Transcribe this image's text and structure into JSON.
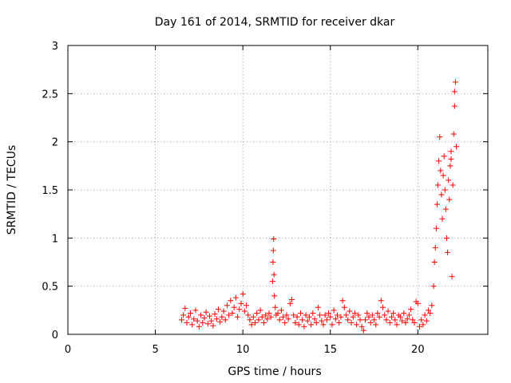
{
  "chart_data": {
    "type": "scatter",
    "title": "Day 161 of 2014, SRMTID for receiver dkar",
    "xlabel": "GPS time / hours",
    "ylabel": "SRMTID / TECUs",
    "xlim": [
      0,
      24
    ],
    "ylim": [
      0,
      3
    ],
    "x_ticks": [
      "0",
      "5",
      "10",
      "15",
      "20"
    ],
    "y_ticks": [
      "0",
      "0.5",
      "1",
      "1.5",
      "2",
      "2.5",
      "3"
    ],
    "grid": true,
    "marker": "+",
    "series_color": "#ff0000",
    "series": [
      {
        "points": [
          [
            6.5,
            0.15
          ],
          [
            6.6,
            0.2
          ],
          [
            6.7,
            0.27
          ],
          [
            6.8,
            0.12
          ],
          [
            6.9,
            0.18
          ],
          [
            7.0,
            0.22
          ],
          [
            7.1,
            0.1
          ],
          [
            7.2,
            0.16
          ],
          [
            7.3,
            0.25
          ],
          [
            7.4,
            0.14
          ],
          [
            7.5,
            0.08
          ],
          [
            7.6,
            0.2
          ],
          [
            7.7,
            0.12
          ],
          [
            7.8,
            0.17
          ],
          [
            7.9,
            0.23
          ],
          [
            8.0,
            0.11
          ],
          [
            8.1,
            0.19
          ],
          [
            8.2,
            0.14
          ],
          [
            8.3,
            0.09
          ],
          [
            8.4,
            0.21
          ],
          [
            8.5,
            0.16
          ],
          [
            8.6,
            0.26
          ],
          [
            8.7,
            0.13
          ],
          [
            8.8,
            0.18
          ],
          [
            8.9,
            0.24
          ],
          [
            9.0,
            0.15
          ],
          [
            9.1,
            0.3
          ],
          [
            9.2,
            0.2
          ],
          [
            9.3,
            0.35
          ],
          [
            9.4,
            0.22
          ],
          [
            9.5,
            0.28
          ],
          [
            9.6,
            0.38
          ],
          [
            9.7,
            0.18
          ],
          [
            9.8,
            0.26
          ],
          [
            9.9,
            0.32
          ],
          [
            10.0,
            0.42
          ],
          [
            10.1,
            0.24
          ],
          [
            10.2,
            0.3
          ],
          [
            10.3,
            0.2
          ],
          [
            10.4,
            0.15
          ],
          [
            10.5,
            0.1
          ],
          [
            10.6,
            0.18
          ],
          [
            10.7,
            0.12
          ],
          [
            10.8,
            0.22
          ],
          [
            10.9,
            0.15
          ],
          [
            11.0,
            0.25
          ],
          [
            11.1,
            0.18
          ],
          [
            11.2,
            0.12
          ],
          [
            11.3,
            0.2
          ],
          [
            11.4,
            0.16
          ],
          [
            11.5,
            0.22
          ],
          [
            11.6,
            0.18
          ],
          [
            11.7,
            0.55
          ],
          [
            11.72,
            0.75
          ],
          [
            11.74,
            0.87
          ],
          [
            11.76,
            0.99
          ],
          [
            11.78,
            0.62
          ],
          [
            11.8,
            0.4
          ],
          [
            11.85,
            0.28
          ],
          [
            11.9,
            0.2
          ],
          [
            12.0,
            0.22
          ],
          [
            12.1,
            0.15
          ],
          [
            12.2,
            0.25
          ],
          [
            12.3,
            0.18
          ],
          [
            12.4,
            0.12
          ],
          [
            12.5,
            0.2
          ],
          [
            12.6,
            0.16
          ],
          [
            12.7,
            0.32
          ],
          [
            12.8,
            0.36
          ],
          [
            12.9,
            0.2
          ],
          [
            13.0,
            0.12
          ],
          [
            13.1,
            0.18
          ],
          [
            13.2,
            0.1
          ],
          [
            13.3,
            0.22
          ],
          [
            13.4,
            0.15
          ],
          [
            13.5,
            0.08
          ],
          [
            13.6,
            0.2
          ],
          [
            13.7,
            0.14
          ],
          [
            13.8,
            0.18
          ],
          [
            13.9,
            0.1
          ],
          [
            14.0,
            0.22
          ],
          [
            14.1,
            0.16
          ],
          [
            14.2,
            0.12
          ],
          [
            14.3,
            0.28
          ],
          [
            14.4,
            0.2
          ],
          [
            14.5,
            0.14
          ],
          [
            14.6,
            0.1
          ],
          [
            14.7,
            0.2
          ],
          [
            14.8,
            0.15
          ],
          [
            14.9,
            0.22
          ],
          [
            15.0,
            0.18
          ],
          [
            15.1,
            0.1
          ],
          [
            15.2,
            0.25
          ],
          [
            15.3,
            0.16
          ],
          [
            15.4,
            0.2
          ],
          [
            15.5,
            0.12
          ],
          [
            15.6,
            0.18
          ],
          [
            15.7,
            0.35
          ],
          [
            15.8,
            0.28
          ],
          [
            15.9,
            0.2
          ],
          [
            16.0,
            0.15
          ],
          [
            16.1,
            0.24
          ],
          [
            16.2,
            0.12
          ],
          [
            16.3,
            0.18
          ],
          [
            16.4,
            0.22
          ],
          [
            16.5,
            0.1
          ],
          [
            16.6,
            0.2
          ],
          [
            16.7,
            0.15
          ],
          [
            16.8,
            0.08
          ],
          [
            16.9,
            0.04
          ],
          [
            17.0,
            0.15
          ],
          [
            17.1,
            0.22
          ],
          [
            17.2,
            0.18
          ],
          [
            17.3,
            0.12
          ],
          [
            17.4,
            0.2
          ],
          [
            17.5,
            0.15
          ],
          [
            17.6,
            0.1
          ],
          [
            17.7,
            0.22
          ],
          [
            17.8,
            0.18
          ],
          [
            17.9,
            0.35
          ],
          [
            18.0,
            0.28
          ],
          [
            18.1,
            0.2
          ],
          [
            18.2,
            0.15
          ],
          [
            18.3,
            0.24
          ],
          [
            18.4,
            0.12
          ],
          [
            18.5,
            0.18
          ],
          [
            18.6,
            0.22
          ],
          [
            18.7,
            0.15
          ],
          [
            18.8,
            0.1
          ],
          [
            18.9,
            0.2
          ],
          [
            19.0,
            0.18
          ],
          [
            19.1,
            0.14
          ],
          [
            19.2,
            0.22
          ],
          [
            19.3,
            0.12
          ],
          [
            19.4,
            0.16
          ],
          [
            19.5,
            0.2
          ],
          [
            19.6,
            0.26
          ],
          [
            19.7,
            0.15
          ],
          [
            19.8,
            0.12
          ],
          [
            19.9,
            0.34
          ],
          [
            20.0,
            0.32
          ],
          [
            20.1,
            0.08
          ],
          [
            20.2,
            0.15
          ],
          [
            20.3,
            0.1
          ],
          [
            20.4,
            0.2
          ],
          [
            20.5,
            0.14
          ],
          [
            20.6,
            0.25
          ],
          [
            20.7,
            0.22
          ],
          [
            20.8,
            0.3
          ],
          [
            20.9,
            0.5
          ],
          [
            20.95,
            0.75
          ],
          [
            21.0,
            0.9
          ],
          [
            21.05,
            1.1
          ],
          [
            21.1,
            1.35
          ],
          [
            21.15,
            1.55
          ],
          [
            21.2,
            1.8
          ],
          [
            21.25,
            2.05
          ],
          [
            21.3,
            1.7
          ],
          [
            21.35,
            1.45
          ],
          [
            21.4,
            1.2
          ],
          [
            21.45,
            1.65
          ],
          [
            21.5,
            1.85
          ],
          [
            21.55,
            1.5
          ],
          [
            21.6,
            1.3
          ],
          [
            21.65,
            1.0
          ],
          [
            21.7,
            0.85
          ],
          [
            21.75,
            1.6
          ],
          [
            21.8,
            1.4
          ],
          [
            21.85,
            1.75
          ],
          [
            21.9,
            1.9
          ],
          [
            21.95,
            0.6
          ],
          [
            22.0,
            1.55
          ],
          [
            22.05,
            2.08
          ],
          [
            22.1,
            2.37
          ],
          [
            22.15,
            2.62
          ],
          [
            22.2,
            1.95
          ],
          [
            22.1,
            2.52
          ],
          [
            21.9,
            1.82
          ]
        ]
      }
    ]
  }
}
